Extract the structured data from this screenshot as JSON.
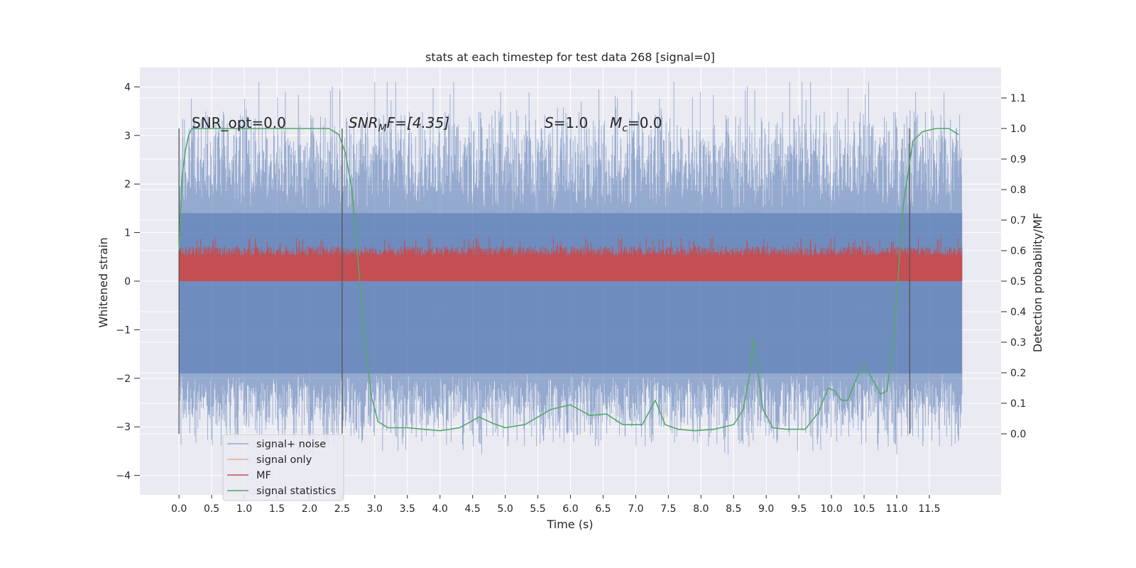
{
  "chart_data": {
    "type": "line",
    "title": "stats at each timestep for test data 268 [signal=0]",
    "xlabel": "Time (s)",
    "ylabel": "Whitened strain",
    "ylabel_right": "Detection probability/MF",
    "xlim": [
      -0.6,
      12.6
    ],
    "ylim": [
      -4.4,
      4.4
    ],
    "ylim_right": [
      -0.2,
      1.2
    ],
    "x_ticks": [
      "0.0",
      "0.5",
      "1.0",
      "1.5",
      "2.0",
      "2.5",
      "3.0",
      "3.5",
      "4.0",
      "4.5",
      "5.0",
      "5.5",
      "6.0",
      "6.5",
      "7.0",
      "7.5",
      "8.0",
      "8.5",
      "9.0",
      "9.5",
      "10.0",
      "10.5",
      "11.0",
      "11.5"
    ],
    "y_ticks": [
      "4",
      "3",
      "2",
      "1",
      "0",
      "−1",
      "−2",
      "−3",
      "−4"
    ],
    "y_ticks_right": [
      "1.1",
      "1.0",
      "0.9",
      "0.8",
      "0.7",
      "0.6",
      "0.5",
      "0.4",
      "0.3",
      "0.2",
      "0.1",
      "0.0"
    ],
    "grid": true,
    "legend_placement": "bottom-left",
    "annotations": {
      "snr_opt": "SNR_opt=0.0",
      "snr_mf_italic": "SNR",
      "snr_mf_sub": "M",
      "snr_mf_rest": "F=[4.35]",
      "s_italic": "S",
      "s_rest": "=1.0",
      "mc_italic": "M",
      "mc_sub": "c",
      "mc_rest": "=0.0"
    },
    "vertical_lines_x": [
      0.0,
      2.5,
      11.2
    ],
    "series": [
      {
        "name": "signal+ noise",
        "color": "#4c72b0",
        "opacity": 0.5,
        "t_range": [
          0.0,
          12.0
        ],
        "envelope": {
          "upper_typical": 1.4,
          "upper_peaks": 3.2,
          "lower_typical": -1.9,
          "lower_peaks": -3.4,
          "max": 4.1,
          "min": -3.7
        }
      },
      {
        "name": "signal only",
        "color": "#dd8452",
        "values_constant": 0.0
      },
      {
        "name": "MF",
        "color": "#c44e52",
        "axis": "right",
        "t_range": [
          0.0,
          12.0
        ],
        "envelope": {
          "low": 0.5,
          "typical_high": 0.6,
          "max": 0.645
        }
      },
      {
        "name": "signal statistics",
        "color": "#55a868",
        "axis": "right",
        "x": [
          0.0,
          0.05,
          0.1,
          0.15,
          0.2,
          0.3,
          0.5,
          1.0,
          1.5,
          2.0,
          2.3,
          2.45,
          2.55,
          2.65,
          2.75,
          2.85,
          2.95,
          3.05,
          3.2,
          3.5,
          4.0,
          4.3,
          4.6,
          4.8,
          5.0,
          5.3,
          5.7,
          6.0,
          6.3,
          6.55,
          6.8,
          7.1,
          7.3,
          7.45,
          7.65,
          7.9,
          8.2,
          8.5,
          8.65,
          8.75,
          8.8,
          8.85,
          8.95,
          9.1,
          9.3,
          9.6,
          9.8,
          9.95,
          10.05,
          10.15,
          10.25,
          10.4,
          10.5,
          10.6,
          10.75,
          10.85,
          10.95,
          11.1,
          11.25,
          11.4,
          11.6,
          11.8,
          11.95
        ],
        "values": [
          0.6,
          0.85,
          0.93,
          0.98,
          1.0,
          1.0,
          1.0,
          1.0,
          1.0,
          1.0,
          1.0,
          0.98,
          0.92,
          0.8,
          0.55,
          0.3,
          0.12,
          0.04,
          0.02,
          0.02,
          0.01,
          0.02,
          0.055,
          0.035,
          0.02,
          0.03,
          0.08,
          0.095,
          0.06,
          0.065,
          0.03,
          0.03,
          0.11,
          0.03,
          0.015,
          0.01,
          0.015,
          0.03,
          0.08,
          0.2,
          0.31,
          0.24,
          0.08,
          0.02,
          0.015,
          0.015,
          0.07,
          0.15,
          0.14,
          0.11,
          0.11,
          0.19,
          0.22,
          0.19,
          0.13,
          0.14,
          0.3,
          0.75,
          0.96,
          0.99,
          1.0,
          1.0,
          0.98
        ]
      }
    ]
  }
}
